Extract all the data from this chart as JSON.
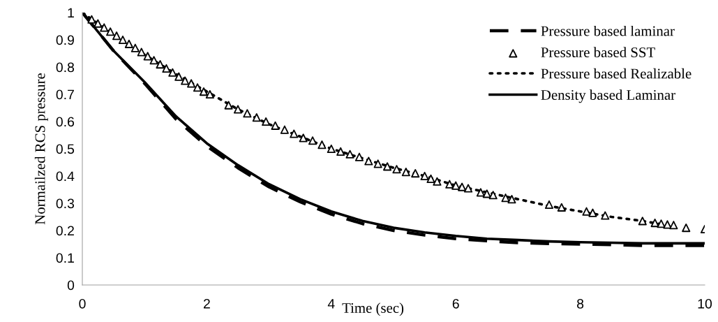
{
  "chart_data": {
    "type": "line",
    "xlabel": "Time (sec)",
    "ylabel": "Normailzed RCS pressure",
    "xlim": [
      0,
      10
    ],
    "xticks": [
      0,
      2,
      4,
      6,
      8,
      10
    ],
    "ylim": [
      0,
      1
    ],
    "yticks": [
      0,
      0.1,
      0.2,
      0.3,
      0.4,
      0.5,
      0.6,
      0.7,
      0.8,
      0.9,
      1
    ],
    "grid": false,
    "legend": "top right",
    "series": [
      {
        "name": "Pressure based laminar",
        "line_style": "dashed",
        "color": "#000000",
        "x": [
          0,
          0.5,
          1,
          1.5,
          2,
          2.5,
          3,
          3.5,
          4,
          4.5,
          5,
          5.5,
          6,
          6.5,
          7,
          7.5,
          8,
          8.5,
          9,
          9.5,
          10
        ],
        "values": [
          1.0,
          0.86,
          0.74,
          0.61,
          0.51,
          0.43,
          0.36,
          0.305,
          0.26,
          0.225,
          0.2,
          0.183,
          0.17,
          0.162,
          0.155,
          0.152,
          0.15,
          0.148,
          0.145,
          0.145,
          0.145
        ]
      },
      {
        "name": "Pressure based SST",
        "type": "scatter",
        "marker": "triangle",
        "color": "#000000",
        "x": [
          0.15,
          0.25,
          0.35,
          0.45,
          0.55,
          0.65,
          0.75,
          0.85,
          0.95,
          1.05,
          1.15,
          1.25,
          1.35,
          1.45,
          1.55,
          1.65,
          1.75,
          1.85,
          1.95,
          2.05,
          2.35,
          2.5,
          2.65,
          2.8,
          2.95,
          3.1,
          3.25,
          3.4,
          3.55,
          3.7,
          3.85,
          4.0,
          4.15,
          4.3,
          4.45,
          4.6,
          4.75,
          4.9,
          5.05,
          5.2,
          5.35,
          5.5,
          5.6,
          5.7,
          5.9,
          6.0,
          6.1,
          6.2,
          6.4,
          6.5,
          6.6,
          6.8,
          6.9,
          7.5,
          7.7,
          8.1,
          8.2,
          8.4,
          9.0,
          9.2,
          9.3,
          9.4,
          9.5,
          9.7,
          10.0
        ],
        "values": [
          0.975,
          0.96,
          0.945,
          0.93,
          0.915,
          0.9,
          0.885,
          0.87,
          0.855,
          0.84,
          0.825,
          0.81,
          0.795,
          0.78,
          0.765,
          0.75,
          0.74,
          0.725,
          0.71,
          0.7,
          0.66,
          0.645,
          0.63,
          0.615,
          0.6,
          0.585,
          0.57,
          0.555,
          0.54,
          0.53,
          0.515,
          0.5,
          0.49,
          0.48,
          0.47,
          0.455,
          0.445,
          0.435,
          0.425,
          0.415,
          0.41,
          0.4,
          0.39,
          0.38,
          0.37,
          0.365,
          0.36,
          0.355,
          0.34,
          0.335,
          0.33,
          0.32,
          0.315,
          0.295,
          0.285,
          0.27,
          0.265,
          0.255,
          0.235,
          0.228,
          0.225,
          0.222,
          0.22,
          0.21,
          0.205
        ]
      },
      {
        "name": "Pressure based Realizable",
        "line_style": "dotted",
        "color": "#000000",
        "x": [
          0,
          0.5,
          1,
          1.5,
          2,
          2.5,
          3,
          3.5,
          4,
          4.5,
          5,
          5.5,
          6,
          6.5,
          7,
          7.5,
          8,
          8.5,
          9,
          9.5
        ],
        "values": [
          1.0,
          0.92,
          0.845,
          0.775,
          0.71,
          0.645,
          0.59,
          0.545,
          0.5,
          0.465,
          0.43,
          0.4,
          0.365,
          0.34,
          0.315,
          0.29,
          0.27,
          0.25,
          0.235,
          0.215
        ]
      },
      {
        "name": "Density based Laminar",
        "line_style": "solid",
        "color": "#000000",
        "x": [
          0,
          0.5,
          1,
          1.5,
          2,
          2.5,
          3,
          3.5,
          4,
          4.5,
          5,
          5.5,
          6,
          6.5,
          7,
          7.5,
          8,
          8.5,
          9,
          9.5,
          10
        ],
        "values": [
          1.0,
          0.86,
          0.745,
          0.62,
          0.52,
          0.44,
          0.37,
          0.315,
          0.27,
          0.235,
          0.21,
          0.193,
          0.18,
          0.17,
          0.165,
          0.16,
          0.157,
          0.155,
          0.153,
          0.153,
          0.153
        ]
      }
    ]
  }
}
